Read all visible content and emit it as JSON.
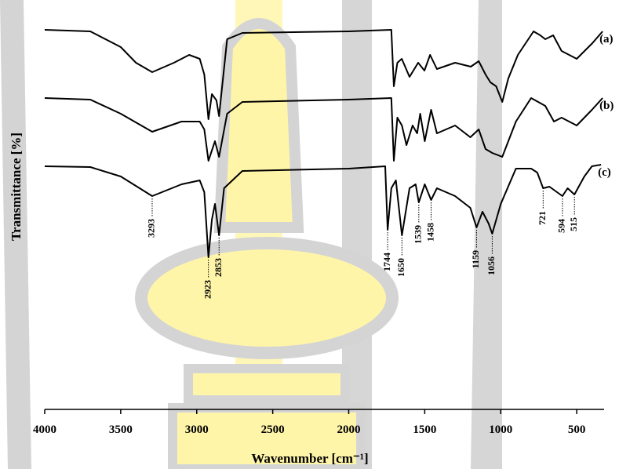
{
  "chart_data": {
    "type": "line",
    "xlabel": "Wavenumber [cm⁻¹]",
    "ylabel": "Transmittance [%]",
    "xlim": [
      4000,
      320
    ],
    "xticks": [
      4000,
      3500,
      3000,
      2500,
      2000,
      1500,
      1000,
      500
    ],
    "ylim": [
      0,
      500
    ],
    "color": "#000000",
    "series": [
      {
        "name": "(a)",
        "x": [
          4000,
          3700,
          3500,
          3400,
          3293,
          3150,
          3050,
          2980,
          2950,
          2923,
          2900,
          2870,
          2853,
          2800,
          2700,
          2000,
          1720,
          1703,
          1680,
          1651,
          1600,
          1543,
          1502,
          1465,
          1420,
          1300,
          1197,
          1145,
          1100,
          1068,
          1030,
          990,
          950,
          887,
          784,
          740,
          707,
          655,
          600,
          500,
          397,
          330
        ],
        "values": [
          484,
          482,
          462,
          442,
          430,
          442,
          452,
          447,
          427,
          370,
          402,
          394,
          374,
          472,
          480,
          482,
          484,
          412,
          442,
          447,
          424,
          442,
          432,
          452,
          434,
          442,
          437,
          444,
          427,
          417,
          412,
          392,
          422,
          452,
          482,
          477,
          472,
          477,
          457,
          447,
          467,
          482
        ]
      },
      {
        "name": "(b)",
        "x": [
          4000,
          3700,
          3500,
          3293,
          3100,
          2980,
          2950,
          2923,
          2880,
          2853,
          2800,
          2700,
          2000,
          1720,
          1703,
          1680,
          1650,
          1620,
          1580,
          1550,
          1530,
          1500,
          1458,
          1420,
          1300,
          1200,
          1145,
          1100,
          1056,
          990,
          900,
          800,
          707,
          650,
          600,
          500,
          400,
          330
        ],
        "values": [
          397,
          395,
          377,
          354,
          367,
          367,
          357,
          317,
          342,
          322,
          377,
          392,
          395,
          397,
          317,
          372,
          362,
          337,
          362,
          352,
          377,
          342,
          382,
          352,
          362,
          347,
          357,
          332,
          327,
          322,
          367,
          397,
          387,
          367,
          372,
          362,
          382,
          397
        ]
      },
      {
        "name": "(c)",
        "x": [
          4000,
          3700,
          3500,
          3293,
          3100,
          2980,
          2950,
          2923,
          2900,
          2880,
          2853,
          2820,
          2700,
          2000,
          1760,
          1744,
          1720,
          1690,
          1650,
          1600,
          1560,
          1539,
          1500,
          1458,
          1420,
          1300,
          1200,
          1159,
          1120,
          1080,
          1056,
          1000,
          900,
          800,
          760,
          721,
          680,
          594,
          560,
          515,
          450,
          400,
          340
        ],
        "values": [
          310,
          309,
          297,
          272,
          287,
          292,
          277,
          194,
          242,
          262,
          222,
          282,
          304,
          307,
          310,
          229,
          282,
          292,
          222,
          282,
          287,
          264,
          287,
          267,
          282,
          272,
          257,
          232,
          252,
          237,
          224,
          262,
          307,
          307,
          302,
          282,
          284,
          272,
          282,
          274,
          297,
          310,
          312
        ]
      }
    ],
    "peaks": [
      3293,
      2923,
      2853,
      1744,
      1650,
      1539,
      1458,
      1159,
      1056,
      721,
      594,
      515
    ]
  }
}
